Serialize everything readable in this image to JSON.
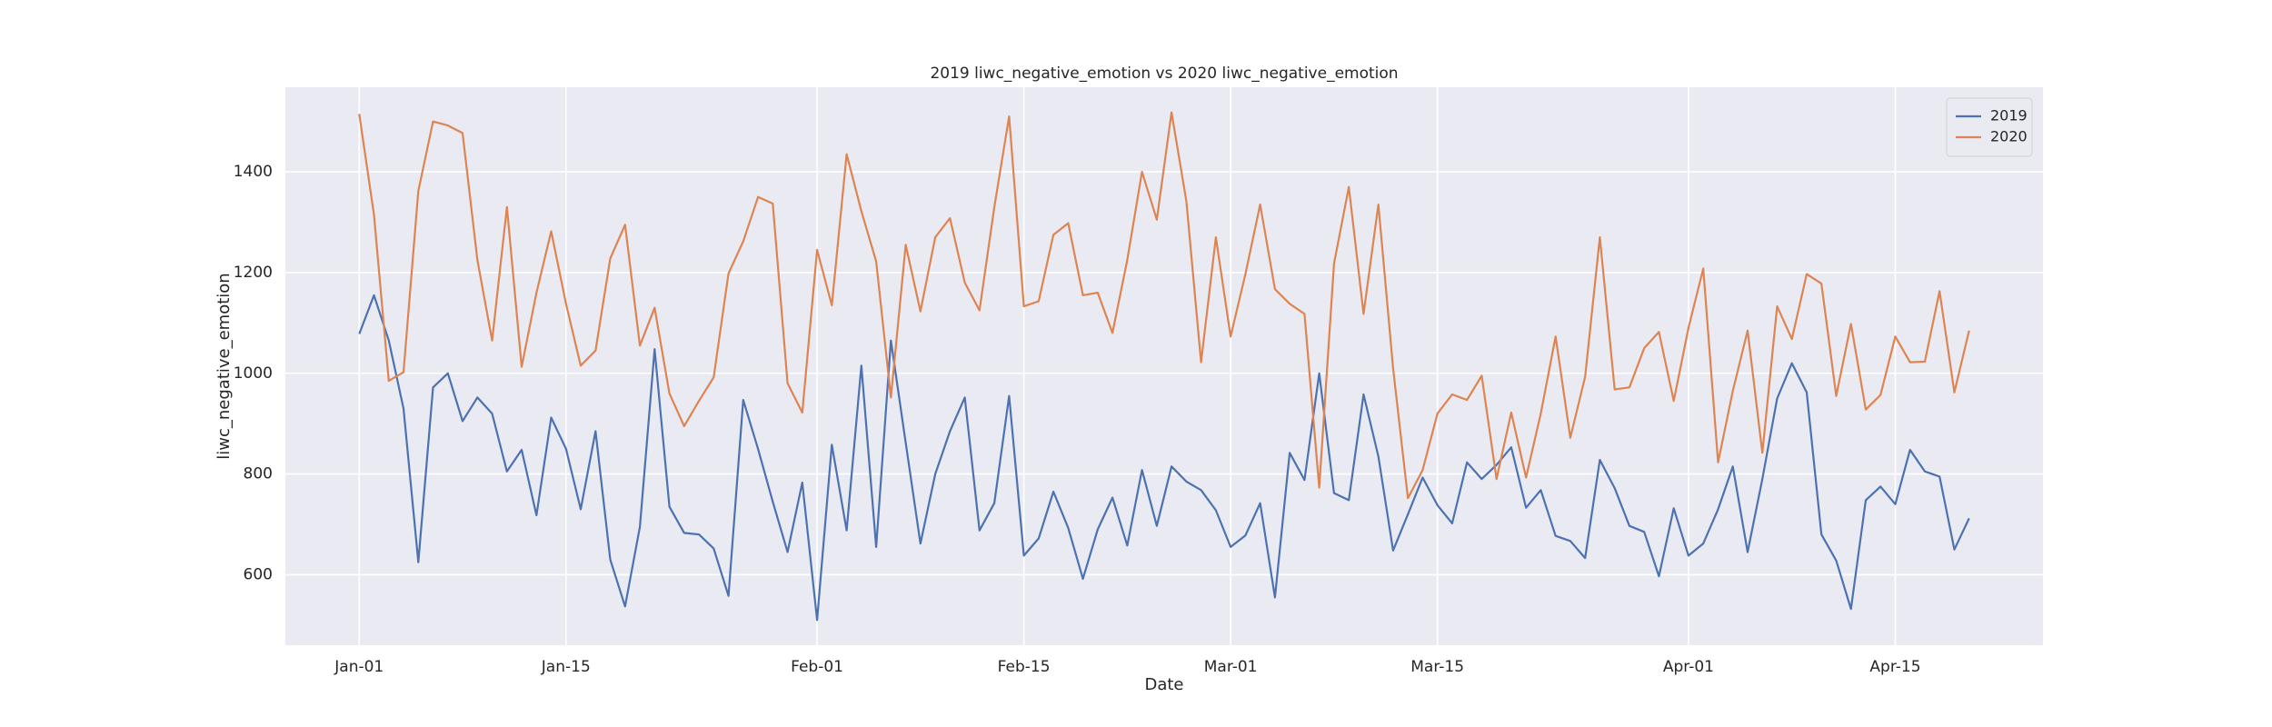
{
  "chart_data": {
    "type": "line",
    "title": "2019 liwc_negative_emotion vs 2020 liwc_negative_emotion",
    "xlabel": "Date",
    "ylabel": "liwc_negative_emotion",
    "x": [
      "01-01",
      "01-02",
      "01-03",
      "01-04",
      "01-05",
      "01-06",
      "01-07",
      "01-08",
      "01-09",
      "01-10",
      "01-11",
      "01-12",
      "01-13",
      "01-14",
      "01-15",
      "01-16",
      "01-17",
      "01-18",
      "01-19",
      "01-20",
      "01-21",
      "01-22",
      "01-23",
      "01-24",
      "01-25",
      "01-26",
      "01-27",
      "01-28",
      "01-29",
      "01-30",
      "01-31",
      "02-01",
      "02-02",
      "02-03",
      "02-04",
      "02-05",
      "02-06",
      "02-07",
      "02-08",
      "02-09",
      "02-10",
      "02-11",
      "02-12",
      "02-13",
      "02-14",
      "02-15",
      "02-16",
      "02-17",
      "02-18",
      "02-19",
      "02-20",
      "02-21",
      "02-22",
      "02-23",
      "02-24",
      "02-25",
      "02-26",
      "02-27",
      "02-28",
      "03-01",
      "03-02",
      "03-03",
      "03-04",
      "03-05",
      "03-06",
      "03-07",
      "03-08",
      "03-09",
      "03-10",
      "03-11",
      "03-12",
      "03-13",
      "03-14",
      "03-15",
      "03-16",
      "03-17",
      "03-18",
      "03-19",
      "03-20",
      "03-21",
      "03-22",
      "03-23",
      "03-24",
      "03-25",
      "03-26",
      "03-27",
      "03-28",
      "03-29",
      "03-30",
      "03-31",
      "04-01",
      "04-02",
      "04-03",
      "04-04",
      "04-05",
      "04-06",
      "04-07",
      "04-08",
      "04-09",
      "04-10",
      "04-11",
      "04-12",
      "04-13",
      "04-14",
      "04-15",
      "04-16",
      "04-17",
      "04-18",
      "04-19",
      "04-20"
    ],
    "series": [
      {
        "name": "2019",
        "color": "#4c72b0",
        "values": [
          1078,
          1155,
          1065,
          930,
          625,
          972,
          1000,
          905,
          952,
          920,
          805,
          848,
          718,
          912,
          850,
          730,
          885,
          630,
          537,
          695,
          1048,
          735,
          683,
          680,
          652,
          558,
          947,
          850,
          745,
          645,
          783,
          510,
          858,
          688,
          1015,
          655,
          1065,
          862,
          662,
          800,
          885,
          952,
          688,
          742,
          955,
          638,
          672,
          765,
          693,
          592,
          690,
          753,
          658,
          808,
          697,
          815,
          785,
          768,
          728,
          655,
          678,
          742,
          555,
          842,
          788,
          1000,
          762,
          748,
          958,
          835,
          648,
          720,
          793,
          738,
          702,
          823,
          790,
          818,
          853,
          733,
          768,
          677,
          667,
          633,
          828,
          772,
          697,
          685,
          597,
          732,
          638,
          662,
          730,
          815,
          645,
          790,
          950,
          1020,
          962,
          680,
          628,
          532,
          748,
          775,
          740,
          848,
          805,
          795,
          650,
          712
        ]
      },
      {
        "name": "2020",
        "color": "#dd8452",
        "values": [
          1515,
          1315,
          985,
          1002,
          1362,
          1500,
          1492,
          1477,
          1225,
          1065,
          1330,
          1013,
          1160,
          1282,
          1138,
          1015,
          1045,
          1228,
          1295,
          1055,
          1130,
          960,
          895,
          945,
          992,
          1198,
          1262,
          1350,
          1337,
          980,
          922,
          1245,
          1135,
          1435,
          1322,
          1222,
          952,
          1255,
          1123,
          1270,
          1308,
          1180,
          1125,
          1330,
          1510,
          1133,
          1143,
          1275,
          1298,
          1155,
          1160,
          1080,
          1225,
          1400,
          1305,
          1518,
          1342,
          1022,
          1270,
          1073,
          1197,
          1335,
          1167,
          1138,
          1118,
          773,
          1218,
          1370,
          1118,
          1335,
          1010,
          752,
          808,
          920,
          958,
          947,
          995,
          790,
          922,
          793,
          920,
          1073,
          872,
          993,
          1270,
          968,
          972,
          1050,
          1082,
          945,
          1090,
          1208,
          823,
          965,
          1085,
          842,
          1133,
          1068,
          1197,
          1178,
          955,
          1098,
          928,
          957,
          1073,
          1022,
          1023,
          1163,
          962,
          1085
        ]
      }
    ],
    "xlim": [
      "12-27",
      "04-25"
    ],
    "xticks": [
      {
        "value": "01-01",
        "label": "Jan-01"
      },
      {
        "value": "01-15",
        "label": "Jan-15"
      },
      {
        "value": "02-01",
        "label": "Feb-01"
      },
      {
        "value": "02-15",
        "label": "Feb-15"
      },
      {
        "value": "03-01",
        "label": "Mar-01"
      },
      {
        "value": "03-15",
        "label": "Mar-15"
      },
      {
        "value": "04-01",
        "label": "Apr-01"
      },
      {
        "value": "04-15",
        "label": "Apr-15"
      }
    ],
    "ylim": [
      460,
      1568
    ],
    "yticks": [
      600,
      800,
      1000,
      1200,
      1400
    ],
    "grid": true,
    "legend": "upper right"
  }
}
